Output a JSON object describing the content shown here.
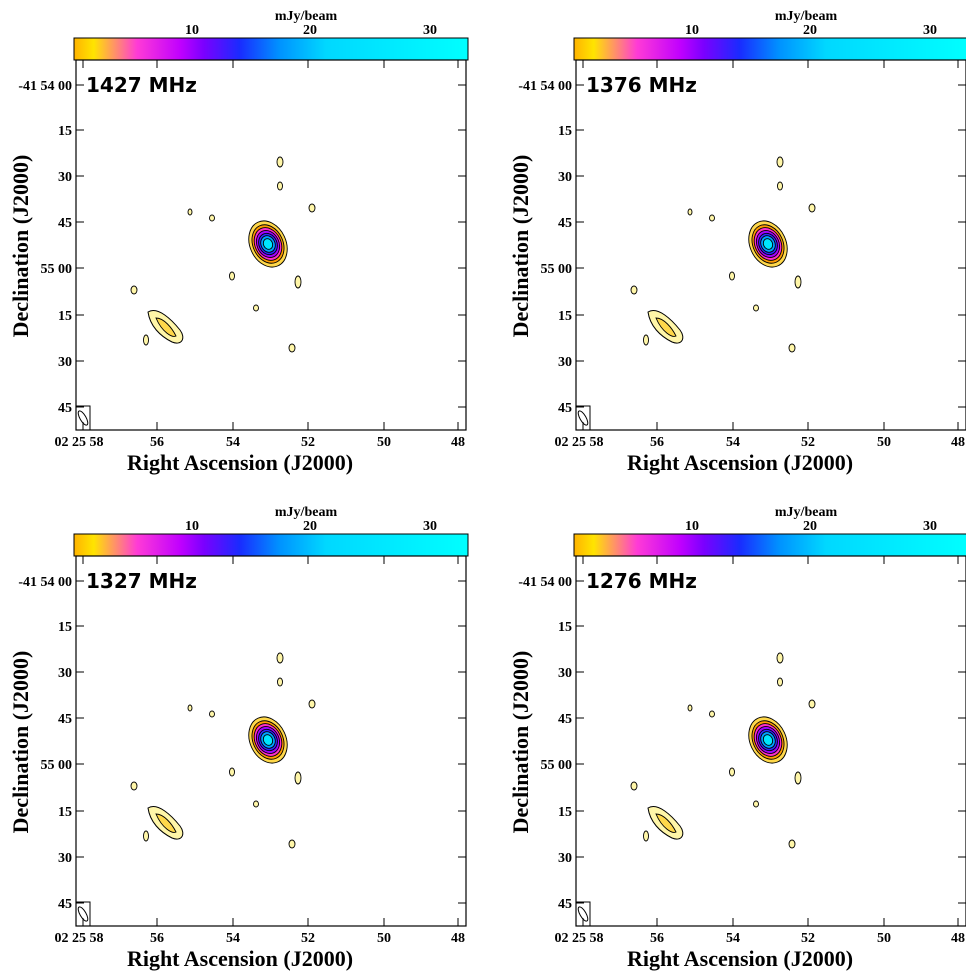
{
  "colorbar": {
    "unit_label": "mJy/beam",
    "tick_labels": [
      "10",
      "20",
      "30"
    ],
    "gradient_colors": [
      "#ffb300",
      "#ffe400",
      "#ff3bd6",
      "#c000ff",
      "#7a00ff",
      "#1a2bff",
      "#0091ff",
      "#00d8ff",
      "#00ffff"
    ]
  },
  "axes": {
    "xlabel": "Right Ascension (J2000)",
    "ylabel": "Declination (J2000)",
    "x_ticks": [
      "02 25 58",
      "56",
      "54",
      "52",
      "50",
      "48"
    ],
    "y_ticks": [
      "-41 54 00",
      "15",
      "30",
      "45",
      "55 00",
      "15",
      "30",
      "45"
    ]
  },
  "panels": [
    {
      "frequency": "1427 MHz"
    },
    {
      "frequency": "1376 MHz"
    },
    {
      "frequency": "1327 MHz"
    },
    {
      "frequency": "1276 MHz"
    }
  ],
  "contour_colors": {
    "line": "#000000",
    "fill_low": "#fff6a8",
    "fill_mid": "#ffd84a",
    "core": [
      "#ff9a00",
      "#ff2ec8",
      "#a000ff",
      "#2d2dff",
      "#00a0ff",
      "#00e6ff"
    ]
  }
}
